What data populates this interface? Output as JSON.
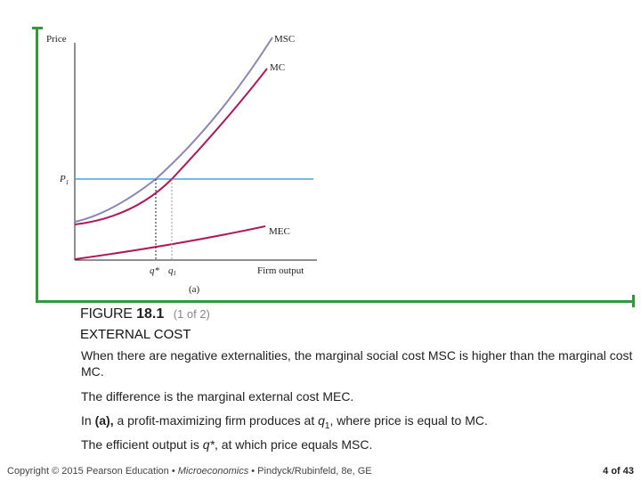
{
  "graph": {
    "y_axis_label": "Price",
    "x_axis_label": "Firm output",
    "panel_label": "(a)",
    "curve_msc": "MSC",
    "curve_mc": "MC",
    "curve_mec": "MEC",
    "price_label": "P",
    "price_sub": "1",
    "qstar_label": "q*",
    "q1_label": "q",
    "q1_sub": "1",
    "colors": {
      "msc": "#8a85b8",
      "mc": "#b0195a",
      "mec": "#b0195a",
      "price": "#3fa6e0",
      "frame": "#2f9a3a"
    }
  },
  "figure": {
    "word": "FIGURE",
    "number": "18.1",
    "count": "(1 of 2)",
    "subtitle": "EXTERNAL COST"
  },
  "text": {
    "p1": "When there are negative externalities, the marginal social cost MSC is higher than the marginal cost MC.",
    "p2": "The difference is the marginal external cost MEC.",
    "p3_a": "In ",
    "p3_b": "(a),",
    "p3_c": " a profit-maximizing firm produces at ",
    "p3_q": "q",
    "p3_sub": "1",
    "p3_d": ", where price is equal to MC.",
    "p4_a": "The efficient output is ",
    "p4_q": "q*",
    "p4_b": ", at which price equals MSC."
  },
  "footer": {
    "copyright": "Copyright © 2015 Pearson Education • ",
    "book": "Microeconomics",
    "rest": " • Pindyck/Rubinfeld, 8e, GE",
    "page": "4 of 43"
  }
}
